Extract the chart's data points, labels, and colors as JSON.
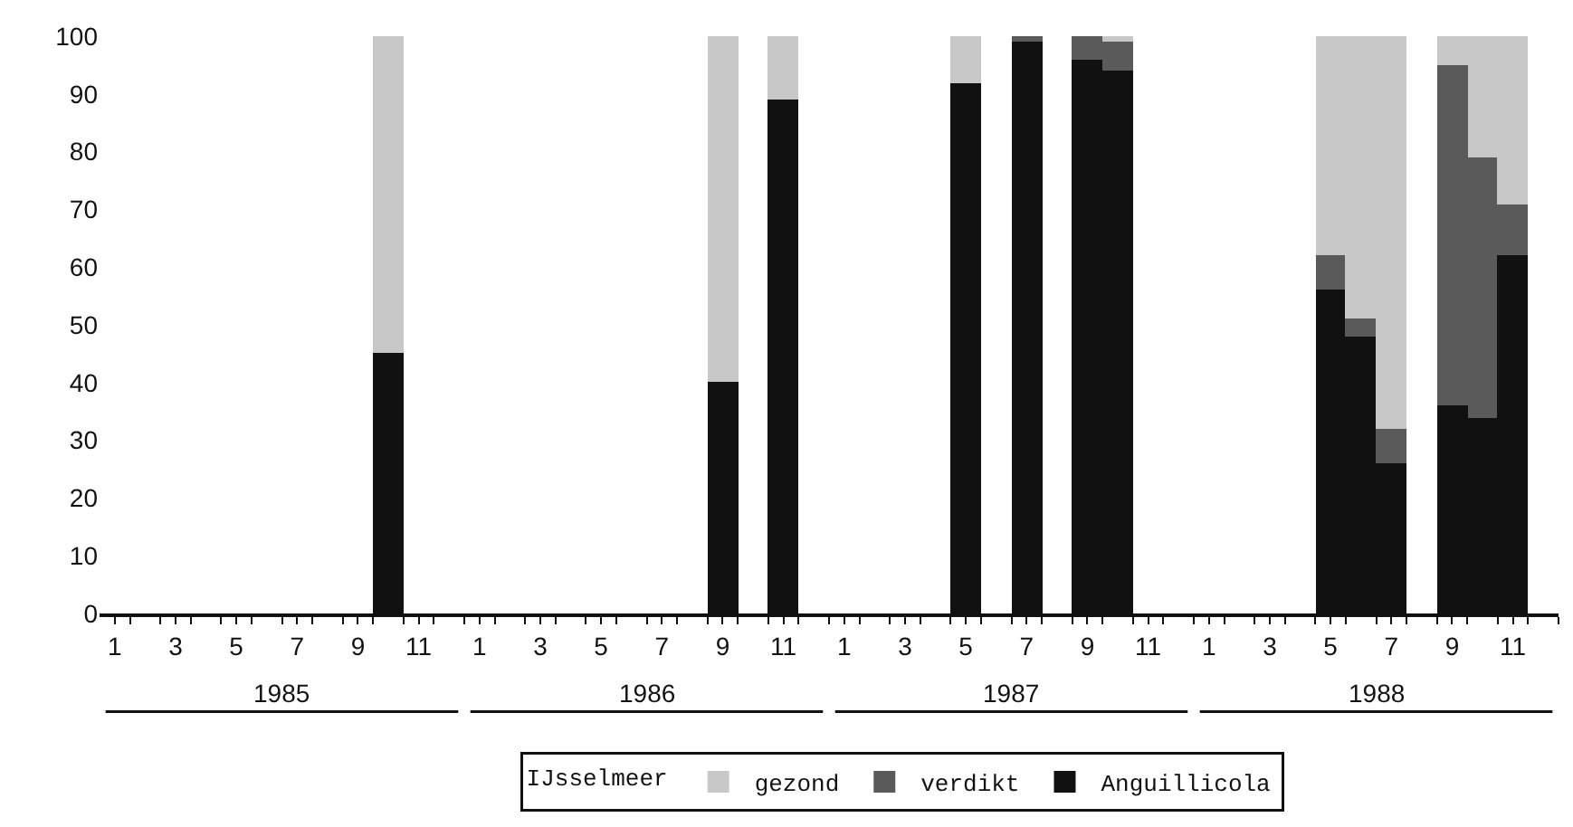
{
  "chart_data": {
    "type": "bar",
    "stacked": true,
    "categories": [
      "1",
      null,
      "3",
      null,
      "5",
      null,
      "7",
      null,
      "9",
      null,
      "11",
      null,
      "1",
      null,
      "3",
      null,
      "5",
      null,
      "7",
      null,
      "9",
      null,
      "11",
      null,
      "1",
      null,
      "3",
      null,
      "5",
      null,
      "7",
      null,
      "9",
      null,
      "11",
      null,
      "1",
      null,
      "3",
      null,
      "5",
      null,
      "7",
      null,
      "9",
      null,
      "11",
      null
    ],
    "series": [
      {
        "name": "Anguillicola",
        "color": "#111111",
        "values": [
          null,
          null,
          null,
          null,
          null,
          null,
          null,
          null,
          null,
          45,
          null,
          null,
          null,
          null,
          null,
          null,
          null,
          null,
          null,
          null,
          40,
          null,
          89,
          null,
          null,
          null,
          null,
          null,
          92,
          null,
          99,
          null,
          96,
          94,
          null,
          null,
          null,
          null,
          null,
          null,
          56,
          48,
          26,
          null,
          36,
          34,
          62,
          null
        ]
      },
      {
        "name": "verdikt",
        "color": "#5a5a5a",
        "values": [
          null,
          null,
          null,
          null,
          null,
          null,
          null,
          null,
          null,
          0,
          null,
          null,
          null,
          null,
          null,
          null,
          null,
          null,
          null,
          null,
          0,
          null,
          0,
          null,
          null,
          null,
          null,
          null,
          0,
          null,
          1,
          null,
          4,
          5,
          null,
          null,
          null,
          null,
          null,
          null,
          6,
          3,
          6,
          null,
          59,
          45,
          9,
          null
        ]
      },
      {
        "name": "gezond",
        "color": "#c8c8c8",
        "values": [
          null,
          null,
          null,
          null,
          null,
          null,
          null,
          null,
          null,
          55,
          null,
          null,
          null,
          null,
          null,
          null,
          null,
          null,
          null,
          null,
          60,
          null,
          11,
          null,
          null,
          null,
          null,
          null,
          8,
          null,
          0,
          null,
          0,
          1,
          null,
          null,
          null,
          null,
          null,
          null,
          38,
          49,
          68,
          null,
          5,
          21,
          29,
          null
        ]
      }
    ],
    "ylim": [
      0,
      100
    ],
    "yticks": [
      0,
      10,
      20,
      30,
      40,
      50,
      60,
      70,
      80,
      90,
      100
    ],
    "legend": "bottom",
    "legend_title": "IJsselmeer",
    "annotations": [
      "1985",
      "1986",
      "1987",
      "1988"
    ]
  }
}
